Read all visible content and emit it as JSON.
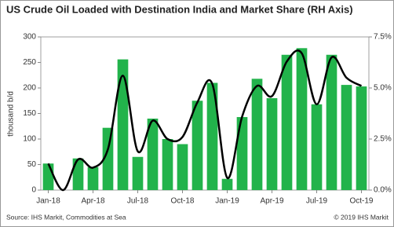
{
  "chart_data": {
    "type": "combo",
    "title": "US Crude Oil Loaded with Destination India and Market Share (RH Axis)",
    "y_label": "thousand b/d",
    "source": "Source: IHS Markit, Commodities at Sea",
    "copyright": "© 2019 IHS Markit",
    "categories": [
      "Jan-18",
      null,
      null,
      "Apr-18",
      null,
      null,
      "Jul-18",
      null,
      null,
      "Oct-18",
      null,
      null,
      "Jan-19",
      null,
      null,
      "Apr-19",
      null,
      null,
      "Jul-19",
      null,
      null,
      "Oct-19"
    ],
    "series": [
      {
        "name": "Crude oil loaded",
        "type": "bar",
        "axis": "y",
        "color": "#22b34b",
        "values": [
          52,
          0,
          62,
          45,
          122,
          256,
          65,
          140,
          100,
          90,
          175,
          210,
          22,
          143,
          218,
          180,
          265,
          278,
          168,
          265,
          206,
          203
        ]
      },
      {
        "name": "Market share",
        "type": "line",
        "axis": "y2",
        "color": "#000000",
        "values": [
          1.3,
          0,
          1.5,
          1.1,
          2.0,
          5.6,
          1.9,
          3.4,
          2.5,
          2.6,
          4.3,
          5.2,
          0.6,
          3.6,
          5.1,
          4.6,
          6.3,
          6.7,
          4.2,
          6.5,
          5.5,
          5.1
        ]
      }
    ],
    "ylim": [
      0,
      300
    ],
    "yticks": [
      0,
      50,
      100,
      150,
      200,
      250,
      300
    ],
    "y2lim": [
      0,
      7.5
    ],
    "y2ticks": [
      {
        "value": 0,
        "label": "0.0%"
      },
      {
        "value": 2.5,
        "label": "2.5%"
      },
      {
        "value": 5,
        "label": "5.0%"
      },
      {
        "value": 7.5,
        "label": "7.5%"
      }
    ],
    "grid": false
  }
}
